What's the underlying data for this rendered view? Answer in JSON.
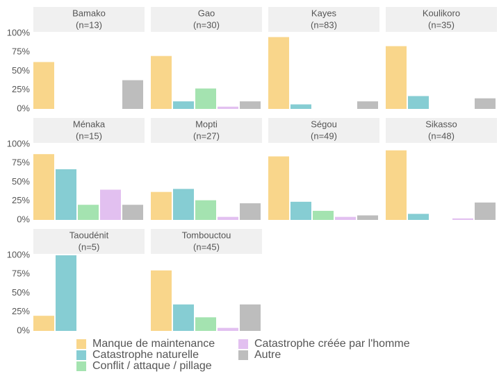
{
  "chart_data": {
    "type": "bar",
    "series": [
      {
        "name": "Manque de maintenance",
        "color": "#f9d68b"
      },
      {
        "name": "Catastrophe naturelle",
        "color": "#86cdd3"
      },
      {
        "name": "Conflit / attaque / pillage",
        "color": "#a4e3b0"
      },
      {
        "name": "Catastrophe créée par l'homme",
        "color": "#e2c0f0"
      },
      {
        "name": "Autre",
        "color": "#bdbdbd"
      }
    ],
    "panels": [
      {
        "title": "Bamako",
        "subtitle": "(n=13)",
        "values": [
          62,
          0,
          0,
          0,
          38
        ]
      },
      {
        "title": "Gao",
        "subtitle": "(n=30)",
        "values": [
          70,
          10,
          27,
          3,
          10
        ]
      },
      {
        "title": "Kayes",
        "subtitle": "(n=83)",
        "values": [
          95,
          6,
          0,
          0,
          10
        ]
      },
      {
        "title": "Koulikoro",
        "subtitle": "(n=35)",
        "values": [
          83,
          17,
          0,
          0,
          14
        ]
      },
      {
        "title": "Ménaka",
        "subtitle": "(n=15)",
        "values": [
          87,
          67,
          20,
          40,
          20
        ]
      },
      {
        "title": "Mopti",
        "subtitle": "(n=27)",
        "values": [
          37,
          41,
          26,
          4,
          22
        ]
      },
      {
        "title": "Ségou",
        "subtitle": "(n=49)",
        "values": [
          84,
          24,
          12,
          4,
          6
        ]
      },
      {
        "title": "Sikasso",
        "subtitle": "(n=48)",
        "values": [
          92,
          8,
          0,
          2,
          23
        ]
      },
      {
        "title": "Taoudénit",
        "subtitle": "(n=5)",
        "values": [
          20,
          100,
          0,
          0,
          0
        ]
      },
      {
        "title": "Tombouctou",
        "subtitle": "(n=45)",
        "values": [
          80,
          35,
          18,
          4,
          35
        ]
      }
    ],
    "ylim": [
      0,
      100
    ],
    "yticks": [
      {
        "value": 0,
        "label": "0%"
      },
      {
        "value": 25,
        "label": "25%"
      },
      {
        "value": 50,
        "label": "50%"
      },
      {
        "value": 75,
        "label": "75%"
      },
      {
        "value": 100,
        "label": "100%"
      }
    ],
    "grid": false
  }
}
